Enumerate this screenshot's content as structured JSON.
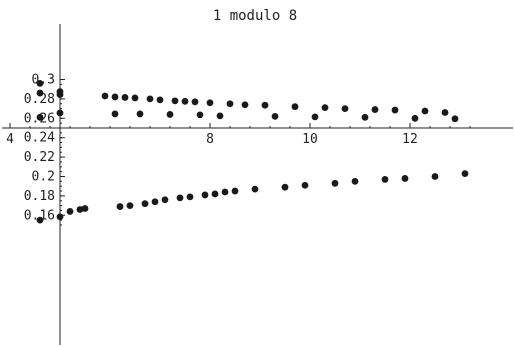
{
  "chart_data": {
    "type": "scatter",
    "title": "1 modulo 8",
    "xlabel": "",
    "ylabel": "",
    "xlim": [
      4,
      13.3
    ],
    "ylim": [
      0.15,
      0.3
    ],
    "x_axis_crosses_y_at": 0.25,
    "y_axis_crosses_x_at": 5.0,
    "x_ticks": [
      4,
      8,
      10,
      12
    ],
    "x_tick_labels": [
      "4",
      "8",
      "10",
      "12"
    ],
    "y_ticks": [
      0.16,
      0.18,
      0.2,
      0.22,
      0.24,
      0.26,
      0.28,
      0.3
    ],
    "y_tick_labels": [
      "0.16",
      "0.18",
      "0.2",
      "0.22",
      "0.24",
      "0.26",
      "0.28",
      "0.3"
    ],
    "grid": false,
    "legend": "none",
    "marker_color": "#1a1a1a",
    "series": [
      {
        "x": [
          4.6,
          4.6,
          4.6,
          4.6,
          5.0,
          5.0,
          5.0,
          5.0,
          5.2,
          5.4,
          5.5,
          5.9,
          6.1,
          6.1,
          6.2,
          6.3,
          6.4,
          6.5,
          6.6,
          6.7,
          6.8,
          6.9,
          7.0,
          7.1,
          7.2,
          7.3,
          7.4,
          7.5,
          7.6,
          7.7,
          7.8,
          7.9,
          8.0,
          8.1,
          8.2,
          8.3,
          8.4,
          8.5,
          8.7,
          8.9,
          9.1,
          9.3,
          9.5,
          9.7,
          9.9,
          10.1,
          10.3,
          10.5,
          10.7,
          10.9,
          11.1,
          11.3,
          11.5,
          11.7,
          11.9,
          12.1,
          12.3,
          12.5,
          12.7,
          12.9,
          13.1
        ],
        "y": [
          0.296,
          0.286,
          0.261,
          0.155,
          0.2875,
          0.2845,
          0.2655,
          0.1585,
          0.164,
          0.166,
          0.167,
          0.283,
          0.282,
          0.2645,
          0.169,
          0.2815,
          0.17,
          0.281,
          0.2645,
          0.172,
          0.28,
          0.174,
          0.279,
          0.176,
          0.264,
          0.278,
          0.178,
          0.2775,
          0.179,
          0.277,
          0.2635,
          0.181,
          0.276,
          0.182,
          0.2625,
          0.184,
          0.275,
          0.185,
          0.274,
          0.187,
          0.2735,
          0.262,
          0.189,
          0.272,
          0.191,
          0.2615,
          0.271,
          0.193,
          0.27,
          0.195,
          0.261,
          0.269,
          0.197,
          0.2685,
          0.198,
          0.26,
          0.2675,
          0.2,
          0.266,
          0.2595,
          0.203
        ]
      }
    ]
  }
}
